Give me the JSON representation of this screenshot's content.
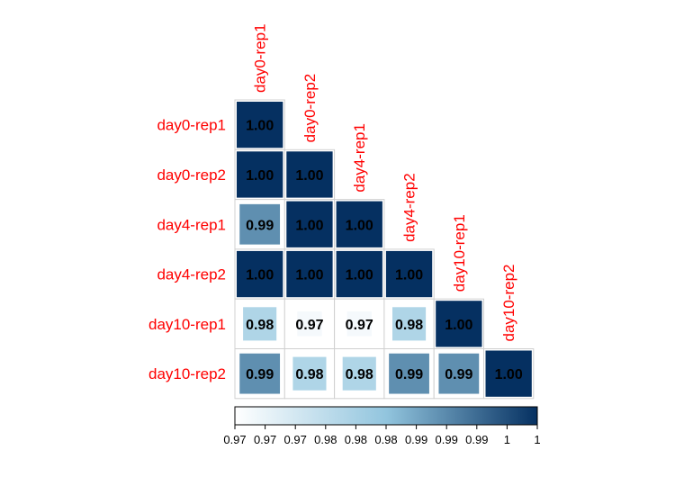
{
  "chart_data": {
    "type": "heatmap",
    "variables": [
      "day0-rep1",
      "day0-rep2",
      "day4-rep1",
      "day4-rep2",
      "day10-rep1",
      "day10-rep2"
    ],
    "matrix": [
      [
        1.0
      ],
      [
        1.0,
        1.0
      ],
      [
        0.99,
        1.0,
        1.0
      ],
      [
        1.0,
        1.0,
        1.0,
        1.0
      ],
      [
        0.98,
        0.97,
        0.97,
        0.98,
        1.0
      ],
      [
        0.99,
        0.98,
        0.98,
        0.99,
        0.99,
        1.0
      ]
    ],
    "value_labels": [
      [
        "1.00"
      ],
      [
        "1.00",
        "1.00"
      ],
      [
        "0.99",
        "1.00",
        "1.00"
      ],
      [
        "1.00",
        "1.00",
        "1.00",
        "1.00"
      ],
      [
        "0.98",
        "0.97",
        "0.97",
        "0.98",
        "1.00"
      ],
      [
        "0.99",
        "0.98",
        "0.98",
        "0.99",
        "0.99",
        "1.00"
      ]
    ],
    "color_range": [
      0.9685,
      1.0
    ],
    "colorbar_ticks": [
      "0.97",
      "0.97",
      "0.97",
      "0.98",
      "0.98",
      "0.98",
      "0.99",
      "0.99",
      "0.99",
      "1",
      "1"
    ],
    "colors": {
      "low": "#ffffff",
      "mid": "#92c5de",
      "high": "#053061",
      "label": "#ff0000",
      "grid": "#d0d0d0"
    },
    "layout": "lower-triangle",
    "legend_position": "bottom"
  }
}
